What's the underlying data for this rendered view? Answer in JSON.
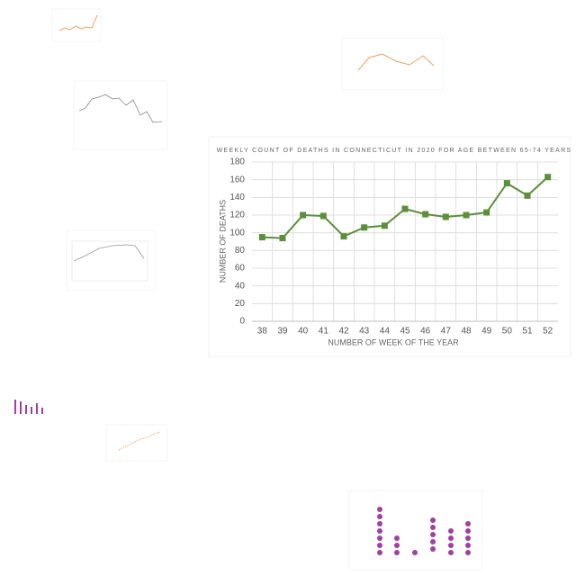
{
  "chart_data": {
    "type": "line",
    "title": "WEEKLY COUNT OF DEATHS IN CONNECTICUT IN 2020 FOR AGE BETWEEN 65-74 YEARS",
    "x_label": "NUMBER OF WEEK OF THE YEAR",
    "y_label": "NUMBER OF DEATHS",
    "categories": [
      "38",
      "39",
      "40",
      "41",
      "42",
      "43",
      "44",
      "45",
      "46",
      "47",
      "48",
      "49",
      "50",
      "51",
      "52"
    ],
    "values": [
      95,
      94,
      120,
      119,
      96,
      106,
      108,
      127,
      121,
      118,
      120,
      123,
      156,
      142,
      163
    ],
    "color": "#5b8f3a",
    "ylim": [
      0,
      180
    ],
    "yticks": [
      0,
      20,
      40,
      60,
      80,
      100,
      120,
      140,
      160,
      180
    ],
    "grid": true
  }
}
